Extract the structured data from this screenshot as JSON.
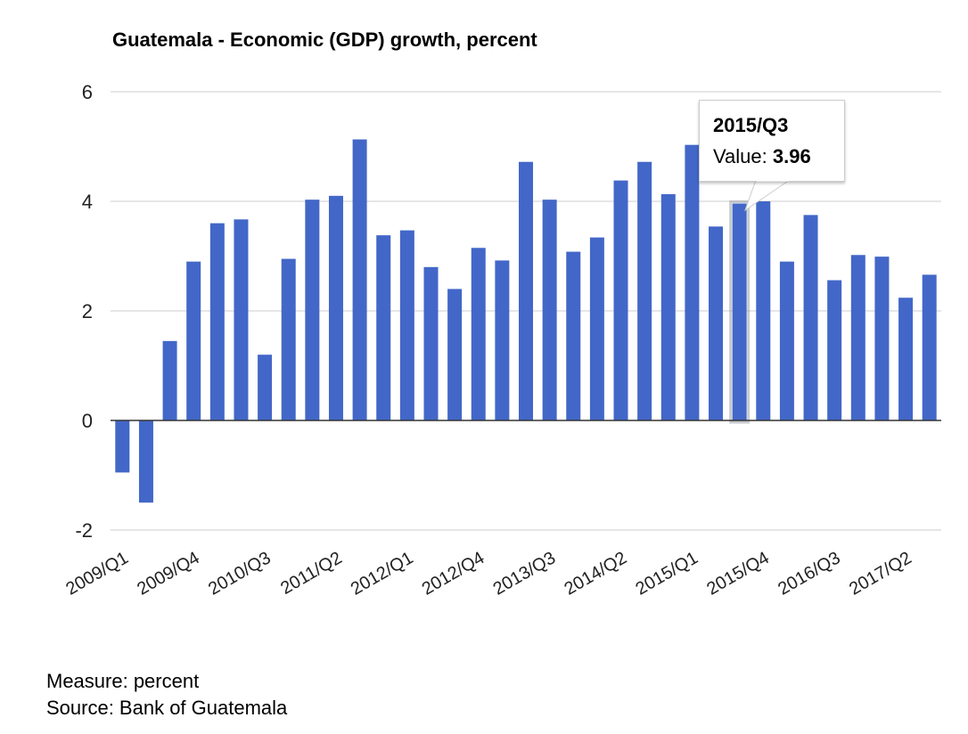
{
  "chart_data": {
    "type": "bar",
    "title": "Guatemala - Economic (GDP) growth, percent",
    "xlabel": "",
    "ylabel": "",
    "ylim": [
      -2,
      6
    ],
    "yticks": [
      6,
      4,
      2,
      0,
      -2
    ],
    "grid": true,
    "legend": "none",
    "bar_color": "#4267c8",
    "categories": [
      "2009/Q1",
      "2009/Q2",
      "2009/Q3",
      "2009/Q4",
      "2010/Q1",
      "2010/Q2",
      "2010/Q3",
      "2010/Q4",
      "2011/Q1",
      "2011/Q2",
      "2011/Q3",
      "2011/Q4",
      "2012/Q1",
      "2012/Q2",
      "2012/Q3",
      "2012/Q4",
      "2013/Q1",
      "2013/Q2",
      "2013/Q3",
      "2013/Q4",
      "2014/Q1",
      "2014/Q2",
      "2014/Q3",
      "2014/Q4",
      "2015/Q1",
      "2015/Q2",
      "2015/Q3",
      "2015/Q4",
      "2016/Q1",
      "2016/Q2",
      "2016/Q3",
      "2016/Q4",
      "2017/Q1",
      "2017/Q2",
      "2017/Q3"
    ],
    "xtick_labels": [
      "2009/Q1",
      "2009/Q4",
      "2010/Q3",
      "2011/Q2",
      "2012/Q1",
      "2012/Q4",
      "2013/Q3",
      "2014/Q2",
      "2015/Q1",
      "2015/Q4",
      "2016/Q3",
      "2017/Q2"
    ],
    "values": [
      -0.95,
      -1.5,
      1.45,
      2.9,
      3.6,
      3.67,
      1.2,
      2.95,
      4.03,
      4.1,
      5.13,
      3.38,
      3.47,
      2.8,
      2.4,
      3.15,
      2.92,
      4.72,
      4.03,
      3.08,
      3.34,
      4.38,
      4.72,
      4.13,
      5.03,
      3.54,
      3.96,
      4.0,
      2.9,
      3.75,
      2.56,
      3.02,
      2.99,
      2.24,
      2.66
    ]
  },
  "tooltip": {
    "category": "2015/Q3",
    "value_label": "Value:",
    "value": "3.96"
  },
  "footer": {
    "measure": "Measure: percent",
    "source": "Source: Bank of Guatemala"
  }
}
